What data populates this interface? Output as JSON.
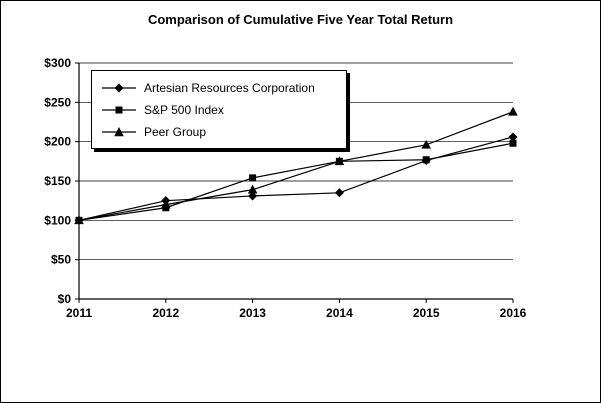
{
  "chart_data": {
    "type": "line",
    "title": "Comparison of Cumulative Five Year Total Return",
    "x_labels": [
      "2011",
      "2012",
      "2013",
      "2014",
      "2015",
      "2016"
    ],
    "ylim": [
      0,
      300
    ],
    "ytick_step": 50,
    "ytick_labels": [
      "$0",
      "$50",
      "$100",
      "$150",
      "$200",
      "$250",
      "$300"
    ],
    "grid": "horizontal",
    "legend_position": "top-left",
    "line_color": "#000000",
    "background_color": "#ffffff",
    "series": [
      {
        "name": "Artesian Resources Corporation",
        "marker": "diamond",
        "values": [
          100,
          125,
          131,
          135,
          176,
          206
        ]
      },
      {
        "name": "S&P 500 Index",
        "marker": "square",
        "values": [
          100,
          116,
          154,
          175,
          177,
          198
        ]
      },
      {
        "name": "Peer Group",
        "marker": "triangle",
        "values": [
          100,
          120,
          139,
          175,
          196,
          238
        ]
      }
    ]
  }
}
